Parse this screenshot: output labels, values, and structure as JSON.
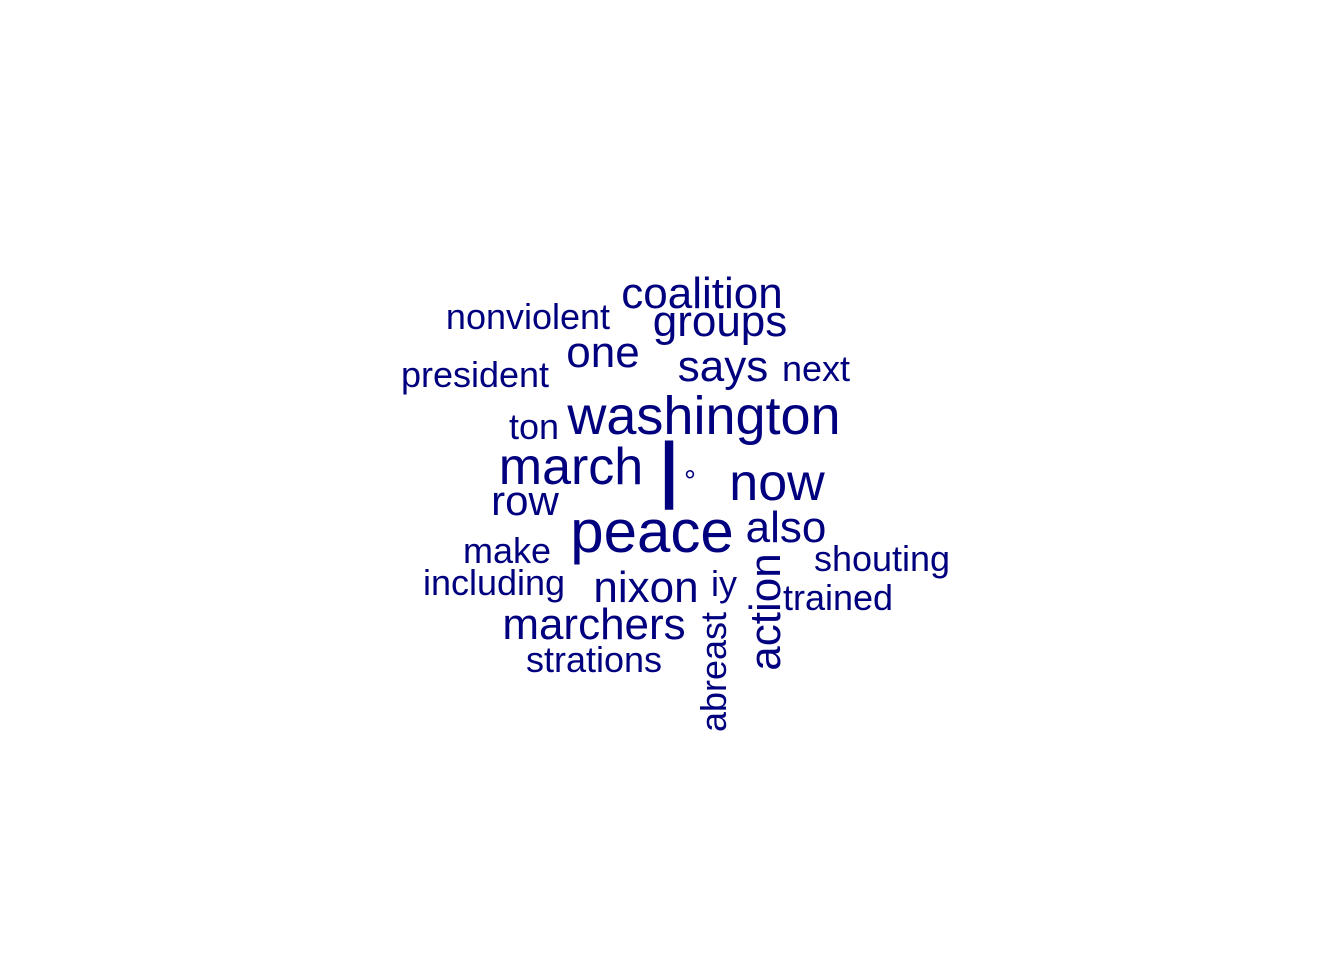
{
  "color": "#00007f",
  "words": {
    "washington": "washington",
    "peace": "peace",
    "march": "march",
    "now": "now",
    "l": "l",
    "degree": "°",
    "coalition": "coalition",
    "groups": "groups",
    "one": "one",
    "says": "says",
    "next": "next",
    "nonviolent": "nonviolent",
    "president": "president",
    "ton": "ton",
    "row": "row",
    "also": "also",
    "shouting": "shouting",
    "make": "make",
    "including": "including",
    "nixon": "nixon",
    "iy": "iy",
    "trained": "trained",
    "marchers": "marchers",
    "strations": "strations",
    "action": "action",
    "abreast": "abreast"
  }
}
